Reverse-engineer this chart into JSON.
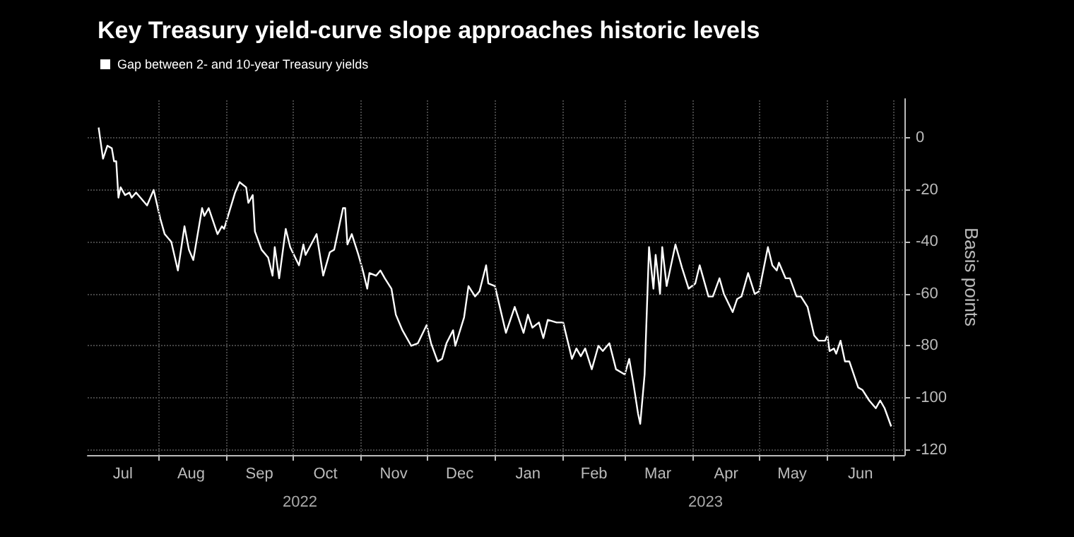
{
  "chart_data": {
    "type": "line",
    "title": "Key Treasury yield-curve slope approaches historic levels",
    "ylabel": "Basis points",
    "legend": "top left",
    "grid": true,
    "marker": "none",
    "line_style": "solid",
    "xlim": [
      "2022-06-30",
      "2023-07-06"
    ],
    "ylim": [
      -122,
      15
    ],
    "yticks": [
      0,
      -20,
      -40,
      -60,
      -80,
      -100,
      -120
    ],
    "xticks": [
      {
        "value": "2022-07-16",
        "label": "Jul"
      },
      {
        "value": "2022-08-01",
        "label": null
      },
      {
        "value": "2022-08-16",
        "label": "Aug"
      },
      {
        "value": "2022-09-01",
        "label": null
      },
      {
        "value": "2022-09-16",
        "label": "Sep"
      },
      {
        "value": "2022-10-01",
        "label": null
      },
      {
        "value": "2022-10-16",
        "label": "Oct"
      },
      {
        "value": "2022-11-01",
        "label": null
      },
      {
        "value": "2022-11-16",
        "label": "Nov"
      },
      {
        "value": "2022-12-01",
        "label": null
      },
      {
        "value": "2022-12-16",
        "label": "Dec"
      },
      {
        "value": "2023-01-01",
        "label": null
      },
      {
        "value": "2023-01-16",
        "label": "Jan"
      },
      {
        "value": "2023-02-01",
        "label": null
      },
      {
        "value": "2023-02-15",
        "label": "Feb"
      },
      {
        "value": "2023-03-01",
        "label": null
      },
      {
        "value": "2023-03-16",
        "label": "Mar"
      },
      {
        "value": "2023-04-01",
        "label": null
      },
      {
        "value": "2023-04-16",
        "label": "Apr"
      },
      {
        "value": "2023-05-01",
        "label": null
      },
      {
        "value": "2023-05-16",
        "label": "May"
      },
      {
        "value": "2023-06-01",
        "label": null
      },
      {
        "value": "2023-06-16",
        "label": "Jun"
      },
      {
        "value": "2023-07-01",
        "label": null
      }
    ],
    "annotations": [
      "2022",
      "2023"
    ],
    "series": [
      {
        "name": "Gap between 2- and 10-year Treasury yields",
        "color": "#ffffff",
        "x": [
          "2022-07-05",
          "2022-07-07",
          "2022-07-09",
          "2022-07-11",
          "2022-07-12",
          "2022-07-13",
          "2022-07-14",
          "2022-07-15",
          "2022-07-17",
          "2022-07-19",
          "2022-07-20",
          "2022-07-22",
          "2022-07-24",
          "2022-07-27",
          "2022-07-30",
          "2022-08-02",
          "2022-08-04",
          "2022-08-07",
          "2022-08-10",
          "2022-08-13",
          "2022-08-15",
          "2022-08-17",
          "2022-08-21",
          "2022-08-22",
          "2022-08-24",
          "2022-08-28",
          "2022-08-30",
          "2022-08-31",
          "2022-09-05",
          "2022-09-07",
          "2022-09-10",
          "2022-09-11",
          "2022-09-13",
          "2022-09-14",
          "2022-09-17",
          "2022-09-20",
          "2022-09-22",
          "2022-09-23",
          "2022-09-25",
          "2022-09-28",
          "2022-09-30",
          "2022-10-04",
          "2022-10-06",
          "2022-10-07",
          "2022-10-12",
          "2022-10-15",
          "2022-10-18",
          "2022-10-20",
          "2022-10-24",
          "2022-10-25",
          "2022-10-26",
          "2022-10-28",
          "2022-10-31",
          "2022-11-02",
          "2022-11-04",
          "2022-11-05",
          "2022-11-08",
          "2022-11-10",
          "2022-11-12",
          "2022-11-15",
          "2022-11-17",
          "2022-11-20",
          "2022-11-24",
          "2022-11-27",
          "2022-12-01",
          "2022-12-03",
          "2022-12-06",
          "2022-12-08",
          "2022-12-10",
          "2022-12-13",
          "2022-12-14",
          "2022-12-18",
          "2022-12-20",
          "2022-12-23",
          "2022-12-25",
          "2022-12-28",
          "2022-12-29",
          "2023-01-01",
          "2023-01-06",
          "2023-01-10",
          "2023-01-14",
          "2023-01-16",
          "2023-01-18",
          "2023-01-21",
          "2023-01-23",
          "2023-01-25",
          "2023-01-29",
          "2023-02-01",
          "2023-02-05",
          "2023-02-07",
          "2023-02-09",
          "2023-02-11",
          "2023-02-14",
          "2023-02-17",
          "2023-02-19",
          "2023-02-22",
          "2023-02-25",
          "2023-03-01",
          "2023-03-03",
          "2023-03-05",
          "2023-03-07",
          "2023-03-08",
          "2023-03-10",
          "2023-03-12",
          "2023-03-14",
          "2023-03-15",
          "2023-03-17",
          "2023-03-18",
          "2023-03-20",
          "2023-03-24",
          "2023-03-27",
          "2023-03-30",
          "2023-04-02",
          "2023-04-04",
          "2023-04-08",
          "2023-04-10",
          "2023-04-13",
          "2023-04-15",
          "2023-04-19",
          "2023-04-21",
          "2023-04-23",
          "2023-04-26",
          "2023-04-29",
          "2023-05-01",
          "2023-05-05",
          "2023-05-07",
          "2023-05-09",
          "2023-05-10",
          "2023-05-13",
          "2023-05-15",
          "2023-05-18",
          "2023-05-20",
          "2023-05-23",
          "2023-05-26",
          "2023-05-28",
          "2023-05-31",
          "2023-06-01",
          "2023-06-02",
          "2023-06-04",
          "2023-06-05",
          "2023-06-07",
          "2023-06-09",
          "2023-06-11",
          "2023-06-15",
          "2023-06-17",
          "2023-06-20",
          "2023-06-23",
          "2023-06-25",
          "2023-06-27",
          "2023-06-30"
        ],
        "values": [
          4,
          -8,
          -3,
          -4,
          -9,
          -9,
          -23,
          -19,
          -22,
          -21,
          -23,
          -21,
          -23,
          -26,
          -20,
          -31,
          -37,
          -40,
          -51,
          -34,
          -43,
          -47,
          -27,
          -30,
          -27,
          -37,
          -34,
          -35,
          -21,
          -17,
          -19,
          -25,
          -22,
          -36,
          -43,
          -46,
          -53,
          -42,
          -54,
          -35,
          -42,
          -49,
          -41,
          -45,
          -37,
          -53,
          -44,
          -43,
          -27,
          -27,
          -41,
          -37,
          -45,
          -51,
          -58,
          -52,
          -53,
          -51,
          -54,
          -58,
          -68,
          -74,
          -80,
          -79,
          -72,
          -79,
          -86,
          -85,
          -79,
          -74,
          -80,
          -69,
          -57,
          -61,
          -59,
          -49,
          -56,
          -57,
          -75,
          -65,
          -75,
          -68,
          -73,
          -71,
          -77,
          -70,
          -71,
          -71,
          -85,
          -81,
          -84,
          -81,
          -89,
          -80,
          -82,
          -79,
          -89,
          -91,
          -85,
          -95,
          -106,
          -110,
          -91,
          -42,
          -58,
          -45,
          -60,
          -42,
          -57,
          -41,
          -50,
          -58,
          -56,
          -49,
          -61,
          -61,
          -54,
          -60,
          -67,
          -62,
          -61,
          -52,
          -60,
          -59,
          -42,
          -49,
          -51,
          -48,
          -54,
          -54,
          -61,
          -61,
          -65,
          -76,
          -78,
          -78,
          -76,
          -82,
          -81,
          -83,
          -78,
          -86,
          -86,
          -96,
          -97,
          -101,
          -104,
          -101,
          -104,
          -111
        ]
      }
    ]
  }
}
